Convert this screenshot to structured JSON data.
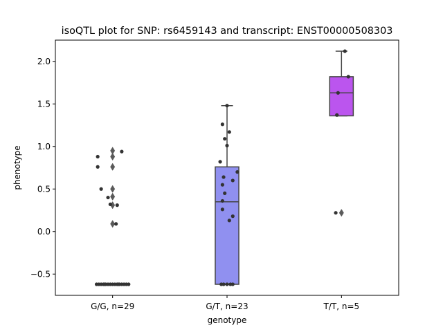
{
  "chart_data": {
    "type": "box",
    "title": "isoQTL plot for SNP: rs6459143 and transcript: ENST00000508303",
    "xlabel": "genotype",
    "ylabel": "phenotype",
    "ylim": [
      -0.75,
      2.25
    ],
    "yticks": [
      -0.5,
      0.0,
      0.5,
      1.0,
      1.5,
      2.0
    ],
    "ytick_labels": [
      "−0.5",
      "0.0",
      "0.5",
      "1.0",
      "1.5",
      "2.0"
    ],
    "categories": [
      "G/G, n=29",
      "G/T, n=23",
      "T/T, n=5"
    ],
    "groups": [
      {
        "label": "G/G, n=29",
        "color": null,
        "box": null,
        "outliers": [
          0.95,
          0.88,
          0.76,
          0.5,
          0.41,
          0.31,
          0.09
        ],
        "points": [
          {
            "dx": -0.13,
            "y": 0.88
          },
          {
            "dx": 0.08,
            "y": 0.94
          },
          {
            "dx": -0.13,
            "y": 0.76
          },
          {
            "dx": -0.1,
            "y": 0.5
          },
          {
            "dx": -0.04,
            "y": 0.4
          },
          {
            "dx": -0.02,
            "y": 0.32
          },
          {
            "dx": 0.04,
            "y": 0.31
          },
          {
            "dx": 0.03,
            "y": 0.09
          },
          {
            "dx": -0.14,
            "y": -0.62
          },
          {
            "dx": -0.12,
            "y": -0.62
          },
          {
            "dx": -0.1,
            "y": -0.62
          },
          {
            "dx": -0.08,
            "y": -0.62
          },
          {
            "dx": -0.06,
            "y": -0.62
          },
          {
            "dx": -0.04,
            "y": -0.62
          },
          {
            "dx": -0.02,
            "y": -0.62
          },
          {
            "dx": 0.0,
            "y": -0.62
          },
          {
            "dx": 0.02,
            "y": -0.62
          },
          {
            "dx": 0.04,
            "y": -0.62
          },
          {
            "dx": 0.06,
            "y": -0.62
          },
          {
            "dx": 0.08,
            "y": -0.62
          },
          {
            "dx": 0.1,
            "y": -0.62
          },
          {
            "dx": 0.12,
            "y": -0.62
          },
          {
            "dx": 0.14,
            "y": -0.62
          },
          {
            "dx": -0.07,
            "y": -0.62
          },
          {
            "dx": 0.05,
            "y": -0.62
          }
        ]
      },
      {
        "label": "G/T, n=23",
        "color": "#9090f0",
        "box": {
          "q1": -0.62,
          "median": 0.35,
          "q3": 0.76,
          "whisker_low": -0.62,
          "whisker_high": 1.48
        },
        "outliers": [],
        "points": [
          {
            "dx": -0.04,
            "y": 1.26
          },
          {
            "dx": 0.0,
            "y": 1.48
          },
          {
            "dx": 0.02,
            "y": 1.17
          },
          {
            "dx": -0.02,
            "y": 1.09
          },
          {
            "dx": 0.0,
            "y": 1.01
          },
          {
            "dx": -0.06,
            "y": 0.82
          },
          {
            "dx": 0.09,
            "y": 0.7
          },
          {
            "dx": -0.03,
            "y": 0.64
          },
          {
            "dx": 0.05,
            "y": 0.6
          },
          {
            "dx": -0.04,
            "y": 0.55
          },
          {
            "dx": -0.02,
            "y": 0.45
          },
          {
            "dx": -0.04,
            "y": 0.36
          },
          {
            "dx": -0.04,
            "y": 0.26
          },
          {
            "dx": 0.05,
            "y": 0.18
          },
          {
            "dx": 0.02,
            "y": 0.13
          },
          {
            "dx": -0.05,
            "y": -0.62
          },
          {
            "dx": -0.03,
            "y": -0.62
          },
          {
            "dx": 0.0,
            "y": -0.62
          },
          {
            "dx": 0.03,
            "y": -0.62
          },
          {
            "dx": 0.05,
            "y": -0.62
          }
        ]
      },
      {
        "label": "T/T, n=5",
        "color": "#bb55ee",
        "box": {
          "q1": 1.36,
          "median": 1.63,
          "q3": 1.82,
          "whisker_low": 1.36,
          "whisker_high": 2.12
        },
        "outliers": [
          0.22
        ],
        "points": [
          {
            "dx": 0.03,
            "y": 2.12
          },
          {
            "dx": 0.06,
            "y": 1.82
          },
          {
            "dx": -0.03,
            "y": 1.63
          },
          {
            "dx": -0.04,
            "y": 1.37
          },
          {
            "dx": -0.05,
            "y": 0.22
          }
        ]
      }
    ]
  }
}
